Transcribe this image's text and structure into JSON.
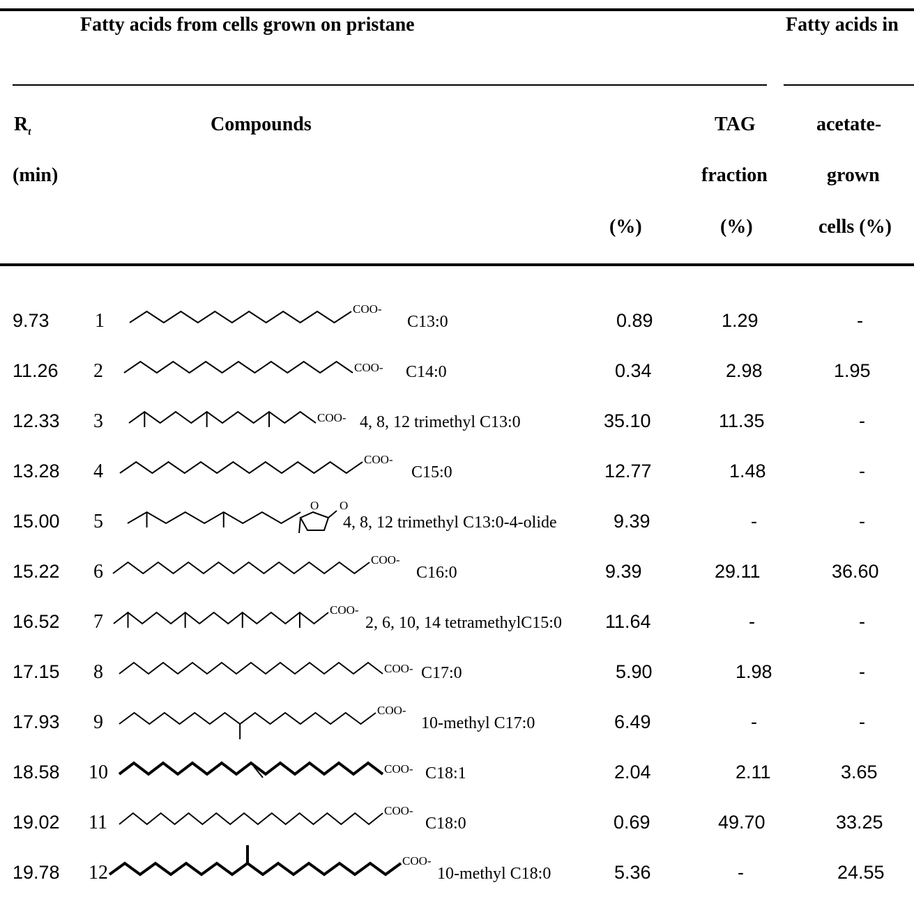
{
  "header": {
    "group_left": "Fatty acids from cells grown on pristane",
    "group_right": "Fatty acids in",
    "col_rt_line1": "R",
    "col_rt_sub": "t",
    "col_rt_line2": "(min)",
    "col_compounds": "Compounds",
    "col_pct": "(%)",
    "col_tag_line1": "TAG",
    "col_tag_line2": "fraction",
    "col_tag_line3": "(%)",
    "col_acetate_line1": "acetate-",
    "col_acetate_line2": "grown",
    "col_acetate_line3": "cells (%)"
  },
  "group_label": "COO-",
  "lactone_o": "O",
  "rows": [
    {
      "rt": "9.73",
      "no": "1",
      "compound": "C13:0",
      "pct": "0.89",
      "tag": "1.29",
      "acetate": "-"
    },
    {
      "rt": "11.26",
      "no": "2",
      "compound": "C14:0",
      "pct": "0.34",
      "tag": "2.98",
      "acetate": "1.95"
    },
    {
      "rt": "12.33",
      "no": "3",
      "compound": "4, 8, 12 trimethyl C13:0",
      "pct": "35.10",
      "tag": "11.35",
      "acetate": "-"
    },
    {
      "rt": "13.28",
      "no": "4",
      "compound": "C15:0",
      "pct": "12.77",
      "tag": "1.48",
      "acetate": "-"
    },
    {
      "rt": "15.00",
      "no": "5",
      "compound": "4, 8, 12 trimethyl C13:0-4-olide",
      "pct": "9.39",
      "tag": "-",
      "acetate": "-"
    },
    {
      "rt": "15.22",
      "no": "6",
      "compound": "C16:0",
      "pct": "9.39",
      "tag": "29.11",
      "acetate": "36.60"
    },
    {
      "rt": "16.52",
      "no": "7",
      "compound": "2, 6, 10, 14 tetramethylC15:0",
      "pct": "11.64",
      "tag": "-",
      "acetate": "-"
    },
    {
      "rt": "17.15",
      "no": "8",
      "compound": "C17:0",
      "pct": "5.90",
      "tag": "1.98",
      "acetate": "-"
    },
    {
      "rt": "17.93",
      "no": "9",
      "compound": "10-methyl C17:0",
      "pct": "6.49",
      "tag": "-",
      "acetate": "-"
    },
    {
      "rt": "18.58",
      "no": "10",
      "compound": "C18:1",
      "pct": "2.04",
      "tag": "2.11",
      "acetate": "3.65"
    },
    {
      "rt": "19.02",
      "no": "11",
      "compound": "C18:0",
      "pct": "0.69",
      "tag": "49.70",
      "acetate": "33.25"
    },
    {
      "rt": "19.78",
      "no": "12",
      "compound": "10-methyl C18:0",
      "pct": "5.36",
      "tag": "-",
      "acetate": "24.55"
    }
  ]
}
